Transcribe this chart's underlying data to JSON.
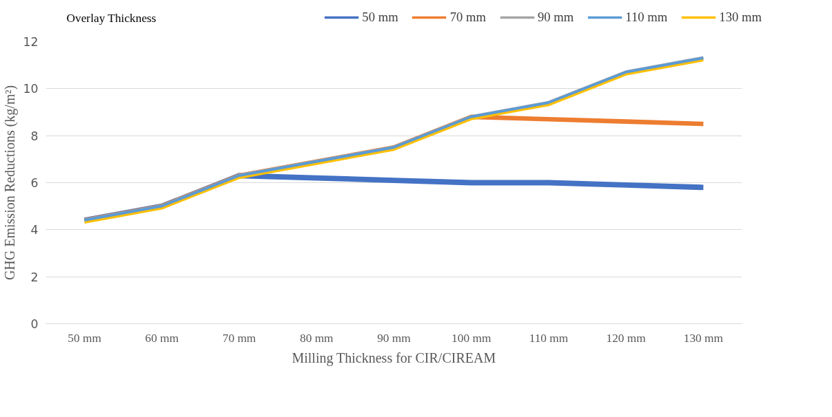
{
  "chart_data": {
    "type": "line",
    "xlabel": "Milling Thickness for CIR/CIREAM",
    "ylabel": "GHG Emission Reductions (kg/m²)",
    "legend_title": "Overlay Thickness",
    "categories": [
      "50 mm",
      "60 mm",
      "70 mm",
      "80 mm",
      "90 mm",
      "100 mm",
      "110 mm",
      "120 mm",
      "130 mm"
    ],
    "series": [
      {
        "name": "50 mm",
        "color": "#4472c4",
        "values": [
          4.4,
          5.0,
          6.3,
          6.2,
          6.1,
          6.0,
          6.0,
          5.9,
          5.8
        ]
      },
      {
        "name": "70 mm",
        "color": "#ed7d31",
        "values": [
          4.4,
          5.0,
          6.3,
          6.9,
          7.5,
          8.8,
          8.7,
          8.6,
          8.5
        ]
      },
      {
        "name": "90 mm",
        "color": "#a5a5a5",
        "values": [
          4.4,
          5.0,
          6.3,
          6.9,
          7.5,
          8.8,
          9.4,
          10.7,
          11.3
        ]
      },
      {
        "name": "110 mm",
        "color": "#5b9bd5",
        "values": [
          4.4,
          5.0,
          6.3,
          6.9,
          7.5,
          8.8,
          9.4,
          10.7,
          11.3
        ]
      },
      {
        "name": "130 mm",
        "color": "#ffc000",
        "values": [
          4.3,
          4.9,
          6.2,
          6.8,
          7.4,
          8.7,
          9.3,
          10.6,
          11.2
        ]
      }
    ],
    "ylim": [
      0,
      12
    ],
    "yticks": [
      0,
      2,
      4,
      6,
      8,
      10,
      12
    ],
    "grid": "y",
    "legend": "top",
    "marker": "none",
    "line_style": "solid"
  }
}
